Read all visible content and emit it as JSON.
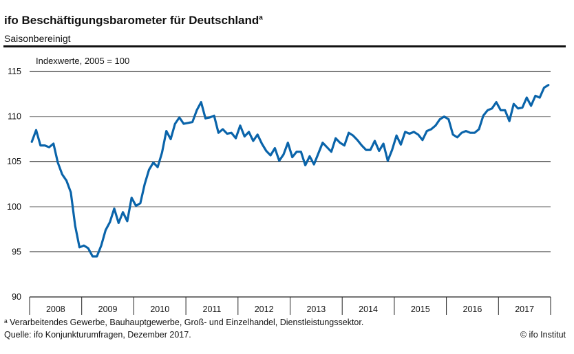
{
  "title": "ifo Beschäftigungsbarometer für Deutschland",
  "title_superscript": "a",
  "subtitle": "Saisonbereinigt",
  "footnote": "ᵃ Verarbeitendes Gewerbe, Bauhauptgewerbe, Groß- und Einzelhandel, Dienstleistungssektor.",
  "source": "Quelle: ifo Konjunkturumfragen, Dezember 2017.",
  "copyright": "© ifo Institut",
  "chart_data": {
    "type": "line",
    "ylabel": "Indexwerte, 2005 = 100",
    "ylim": [
      90,
      115
    ],
    "yticks": [
      90,
      95,
      100,
      105,
      110,
      115
    ],
    "xticks": [
      "2008",
      "2009",
      "2010",
      "2011",
      "2012",
      "2013",
      "2014",
      "2015",
      "2016",
      "2017"
    ],
    "x_frequency": "monthly, Jan 2008 – Dec 2017",
    "grid": true,
    "line_color": "#0a64aa",
    "series": [
      {
        "values": [
          107.2,
          108.5,
          106.8,
          106.8,
          106.6,
          107.0,
          104.9,
          103.6,
          102.9,
          101.6,
          97.9,
          95.5,
          95.7,
          95.4,
          94.5,
          94.5,
          95.7,
          97.4,
          98.3,
          99.8,
          98.2,
          99.4,
          98.4,
          101.0,
          100.1,
          100.4,
          102.5,
          104.1,
          104.9,
          104.4,
          106.0,
          108.4,
          107.5,
          109.2,
          109.9,
          109.2,
          109.3,
          109.4,
          110.7,
          111.6,
          109.8,
          109.9,
          110.1,
          108.2,
          108.6,
          108.1,
          108.2,
          107.6,
          109.0,
          107.8,
          108.3,
          107.3,
          108.0,
          107.0,
          106.2,
          105.7,
          106.5,
          105.1,
          105.8,
          107.1,
          105.5,
          106.1,
          106.1,
          104.6,
          105.6,
          104.7,
          105.9,
          107.1,
          106.6,
          106.1,
          107.6,
          107.1,
          106.8,
          108.2,
          107.9,
          107.4,
          106.8,
          106.3,
          106.3,
          107.3,
          106.2,
          107.0,
          105.1,
          106.3,
          107.9,
          106.9,
          108.3,
          108.1,
          108.3,
          108.0,
          107.4,
          108.4,
          108.6,
          109.0,
          109.7,
          110.0,
          109.7,
          108.0,
          107.7,
          108.2,
          108.4,
          108.2,
          108.2,
          108.6,
          110.1,
          110.7,
          110.9,
          111.6,
          110.7,
          110.7,
          109.5,
          111.4,
          110.9,
          111.0,
          112.1,
          111.2,
          112.3,
          112.1,
          113.2,
          113.5
        ]
      }
    ]
  }
}
